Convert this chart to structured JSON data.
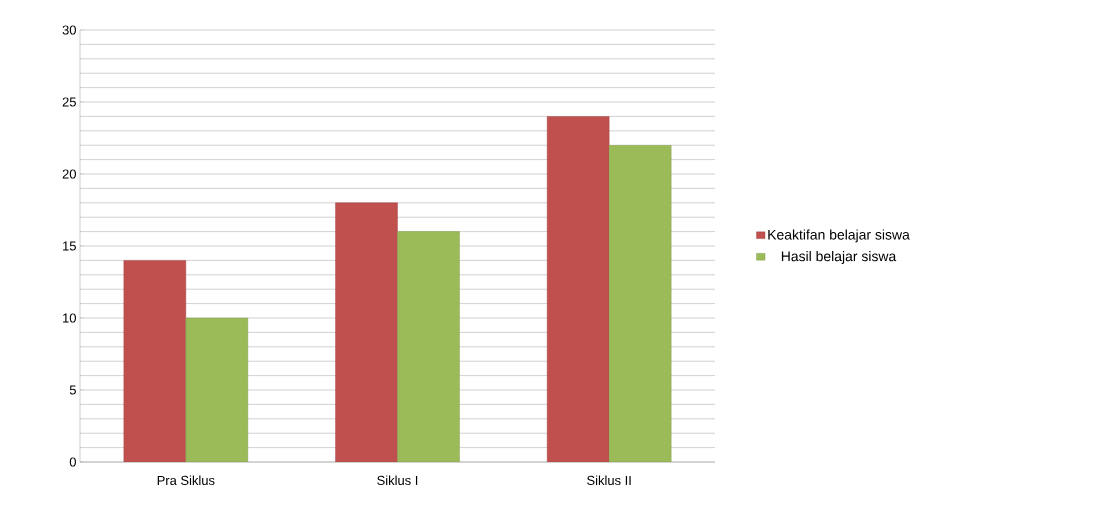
{
  "chart_data": {
    "type": "bar",
    "categories": [
      "Pra Siklus",
      "Siklus I",
      "Siklus II"
    ],
    "series": [
      {
        "name": "Keaktifan belajar siswa",
        "color": "#c0504d",
        "values": [
          14,
          18,
          24
        ]
      },
      {
        "name": "Hasil belajar siswa",
        "color": "#9bbb59",
        "values": [
          10,
          16,
          22
        ]
      }
    ],
    "ylim": [
      0,
      30
    ],
    "yticks": [
      0,
      5,
      10,
      15,
      20,
      25,
      30
    ],
    "grid": "y",
    "legend": "right"
  }
}
